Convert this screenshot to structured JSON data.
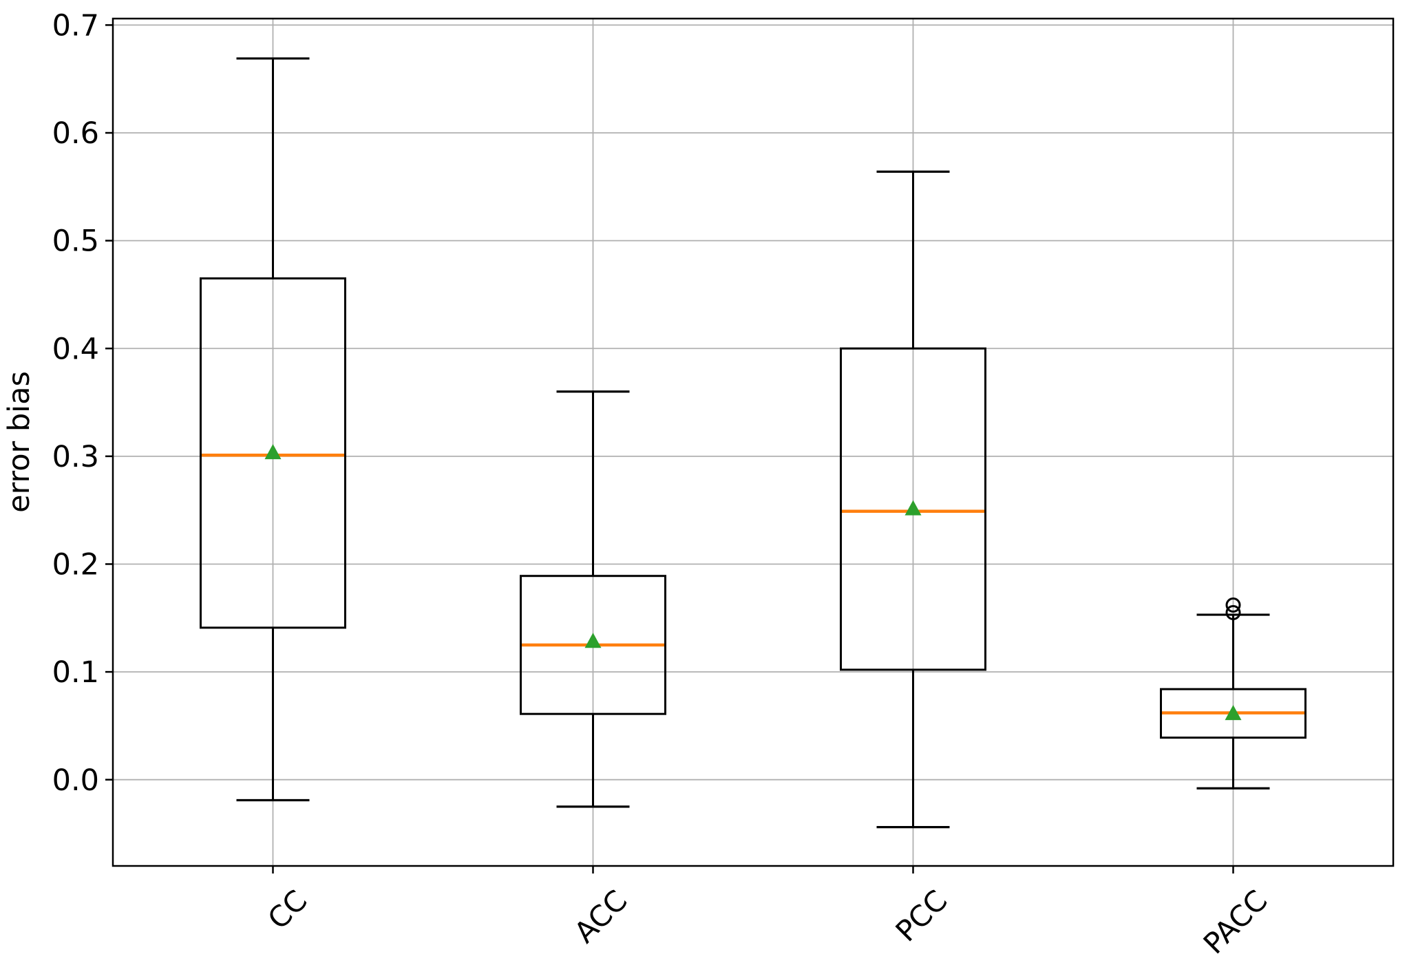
{
  "chart_data": {
    "type": "box",
    "title": "",
    "xlabel": "",
    "ylabel": "error bias",
    "categories": [
      "CC",
      "ACC",
      "PCC",
      "PACC"
    ],
    "yticks": [
      0.0,
      0.1,
      0.2,
      0.3,
      0.4,
      0.5,
      0.6,
      0.7
    ],
    "ytick_labels": [
      "0.0",
      "0.1",
      "0.2",
      "0.3",
      "0.4",
      "0.5",
      "0.6",
      "0.7"
    ],
    "ylim": [
      -0.08,
      0.706
    ],
    "grid": true,
    "xtick_rotation_deg": 45,
    "series": [
      {
        "label": "CC",
        "whislo": -0.019,
        "q1": 0.141,
        "med": 0.301,
        "mean": 0.303,
        "q3": 0.465,
        "whishi": 0.669,
        "fliers": []
      },
      {
        "label": "ACC",
        "whislo": -0.025,
        "q1": 0.061,
        "med": 0.125,
        "mean": 0.128,
        "q3": 0.189,
        "whishi": 0.36,
        "fliers": []
      },
      {
        "label": "PCC",
        "whislo": -0.044,
        "q1": 0.102,
        "med": 0.249,
        "mean": 0.251,
        "q3": 0.4,
        "whishi": 0.564,
        "fliers": []
      },
      {
        "label": "PACC",
        "whislo": -0.008,
        "q1": 0.039,
        "med": 0.062,
        "mean": 0.061,
        "q3": 0.084,
        "whishi": 0.153,
        "fliers": [
          0.155,
          0.162
        ]
      }
    ],
    "style": {
      "median_color": "#ff7f0e",
      "mean_color": "#2ca02c",
      "box_color": "#000000",
      "grid_color": "#b0b0b0",
      "spine_color": "#000000",
      "background": "#ffffff"
    }
  }
}
